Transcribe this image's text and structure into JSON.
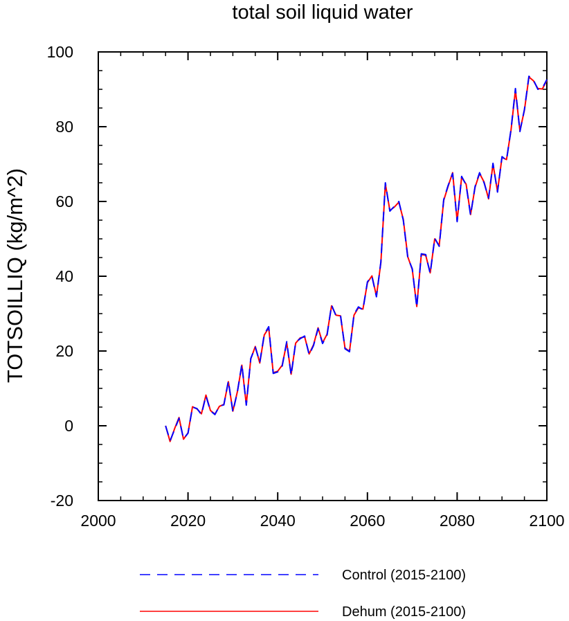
{
  "chart_data": {
    "type": "line",
    "title": "total soil liquid water",
    "ylabel": "TOTSOILLIQ  (kg/m^2)",
    "xlabel": "",
    "xlim": [
      2000,
      2100
    ],
    "ylim": [
      -20,
      100
    ],
    "x_ticks": [
      2000,
      2020,
      2040,
      2060,
      2080,
      2100
    ],
    "y_ticks": [
      -20,
      0,
      20,
      40,
      60,
      80,
      100
    ],
    "x_tick_labels": [
      "2000",
      "2020",
      "2040",
      "2060",
      "2080",
      "2100"
    ],
    "y_tick_labels": [
      "-20",
      "0",
      "20",
      "40",
      "60",
      "80",
      "100"
    ],
    "grid": false,
    "legend_position": "bottom",
    "x": [
      2015,
      2016,
      2017,
      2018,
      2019,
      2020,
      2021,
      2022,
      2023,
      2024,
      2025,
      2026,
      2027,
      2028,
      2029,
      2030,
      2031,
      2032,
      2033,
      2034,
      2035,
      2036,
      2037,
      2038,
      2039,
      2040,
      2041,
      2042,
      2043,
      2044,
      2045,
      2046,
      2047,
      2048,
      2049,
      2050,
      2051,
      2052,
      2053,
      2054,
      2055,
      2056,
      2057,
      2058,
      2059,
      2060,
      2061,
      2062,
      2063,
      2064,
      2065,
      2066,
      2067,
      2068,
      2069,
      2070,
      2071,
      2072,
      2073,
      2074,
      2075,
      2076,
      2077,
      2078,
      2079,
      2080,
      2081,
      2082,
      2083,
      2084,
      2085,
      2086,
      2087,
      2088,
      2089,
      2090,
      2091,
      2092,
      2093,
      2094,
      2095,
      2096,
      2097,
      2098,
      2099,
      2100
    ],
    "series": [
      {
        "name": "Control (2015-2100)",
        "color": "#0000ff",
        "style": "dashed",
        "values": [
          0,
          -4,
          -1,
          2,
          -3.5,
          -2,
          5,
          4.6,
          3,
          8,
          4,
          3,
          5.3,
          5.6,
          12,
          3.7,
          9,
          16.5,
          5.5,
          18,
          21,
          17,
          24.5,
          26.5,
          14,
          14.4,
          16,
          22.5,
          13.5,
          22.3,
          23.3,
          24,
          19,
          21.5,
          26,
          22,
          24.3,
          32.3,
          29.4,
          29.6,
          20.6,
          19.8,
          29.8,
          31.8,
          31,
          38.5,
          40,
          34.5,
          43.8,
          65,
          57.4,
          58.7,
          60,
          55,
          45,
          42,
          31.7,
          46,
          45.8,
          40.7,
          50.2,
          48,
          60.5,
          64.3,
          67.5,
          54.6,
          66.7,
          64.4,
          56.3,
          64,
          67.7,
          65,
          60.9,
          70.2,
          62.5,
          72,
          71,
          79.2,
          90.2,
          78.7,
          84.6,
          93.5,
          92.5,
          90,
          90.3,
          92.6
        ]
      },
      {
        "name": "Dehum (2015-2100)",
        "color": "#ff0000",
        "style": "solid",
        "values": [
          0,
          -4.2,
          -0.8,
          2.2,
          -3.6,
          -1.9,
          5.1,
          4.5,
          3.2,
          8.2,
          4.1,
          3.1,
          5.2,
          5.7,
          11.8,
          3.9,
          9.1,
          16.2,
          5.7,
          17.9,
          21.2,
          16.8,
          24.3,
          26.2,
          14.2,
          14.6,
          16.2,
          22.2,
          13.8,
          22.1,
          23.5,
          23.8,
          19.2,
          21.7,
          26.2,
          22.2,
          24.5,
          32.1,
          29.6,
          29.4,
          20.8,
          19.9,
          29.6,
          31.6,
          31.2,
          38.3,
          40.1,
          34.7,
          43.6,
          64.7,
          57.6,
          58.5,
          59.8,
          55.2,
          45.2,
          41.8,
          31.9,
          45.8,
          45.6,
          40.9,
          50,
          48.2,
          60.3,
          64.1,
          67.7,
          54.8,
          66.5,
          64.6,
          56.5,
          63.8,
          67.5,
          65.2,
          60.7,
          70,
          62.7,
          71.8,
          71.2,
          79,
          89.8,
          78.9,
          84.4,
          93.3,
          92.3,
          90.2,
          90.1,
          92.4
        ]
      }
    ]
  }
}
